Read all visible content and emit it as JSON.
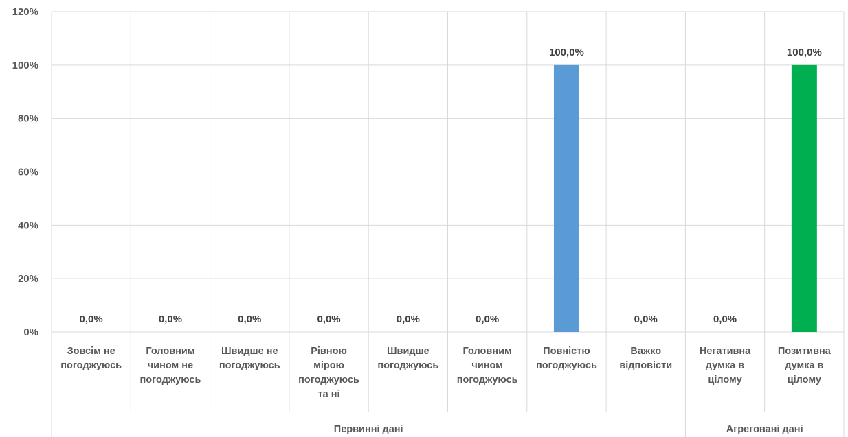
{
  "chart_data": {
    "type": "bar",
    "ylim": [
      0,
      120
    ],
    "y_ticks": [
      0,
      20,
      40,
      60,
      80,
      100,
      120
    ],
    "y_tick_labels": [
      "0%",
      "20%",
      "40%",
      "60%",
      "80%",
      "100%",
      "120%"
    ],
    "grid": true,
    "legend": "none",
    "categories": [
      {
        "label_lines": [
          "Зовсім не",
          "погоджуюсь"
        ],
        "value": 0,
        "value_label": "0,0%",
        "color": "#5B9BD5"
      },
      {
        "label_lines": [
          "Головним",
          "чином не",
          "погоджуюсь"
        ],
        "value": 0,
        "value_label": "0,0%",
        "color": "#5B9BD5"
      },
      {
        "label_lines": [
          "Швидше не",
          "погоджуюсь"
        ],
        "value": 0,
        "value_label": "0,0%",
        "color": "#5B9BD5"
      },
      {
        "label_lines": [
          "Рівною",
          "мірою",
          "погоджуюсь",
          "та ні"
        ],
        "value": 0,
        "value_label": "0,0%",
        "color": "#5B9BD5"
      },
      {
        "label_lines": [
          "Швидше",
          "погоджуюсь"
        ],
        "value": 0,
        "value_label": "0,0%",
        "color": "#5B9BD5"
      },
      {
        "label_lines": [
          "Головним",
          "чином",
          "погоджуюсь"
        ],
        "value": 0,
        "value_label": "0,0%",
        "color": "#5B9BD5"
      },
      {
        "label_lines": [
          "Повністю",
          "погоджуюсь"
        ],
        "value": 100,
        "value_label": "100,0%",
        "color": "#5B9BD5"
      },
      {
        "label_lines": [
          "Важко",
          "відповісти"
        ],
        "value": 0,
        "value_label": "0,0%",
        "color": "#5B9BD5"
      },
      {
        "label_lines": [
          "Негативна",
          "думка в",
          "цілому"
        ],
        "value": 0,
        "value_label": "0,0%",
        "color": "#00B050"
      },
      {
        "label_lines": [
          "Позитивна",
          "думка в",
          "цілому"
        ],
        "value": 100,
        "value_label": "100,0%",
        "color": "#00B050"
      }
    ],
    "groups": [
      {
        "label": "Первинні дані",
        "start": 0,
        "end": 7
      },
      {
        "label": "Агреговані дані",
        "start": 8,
        "end": 9
      }
    ]
  }
}
